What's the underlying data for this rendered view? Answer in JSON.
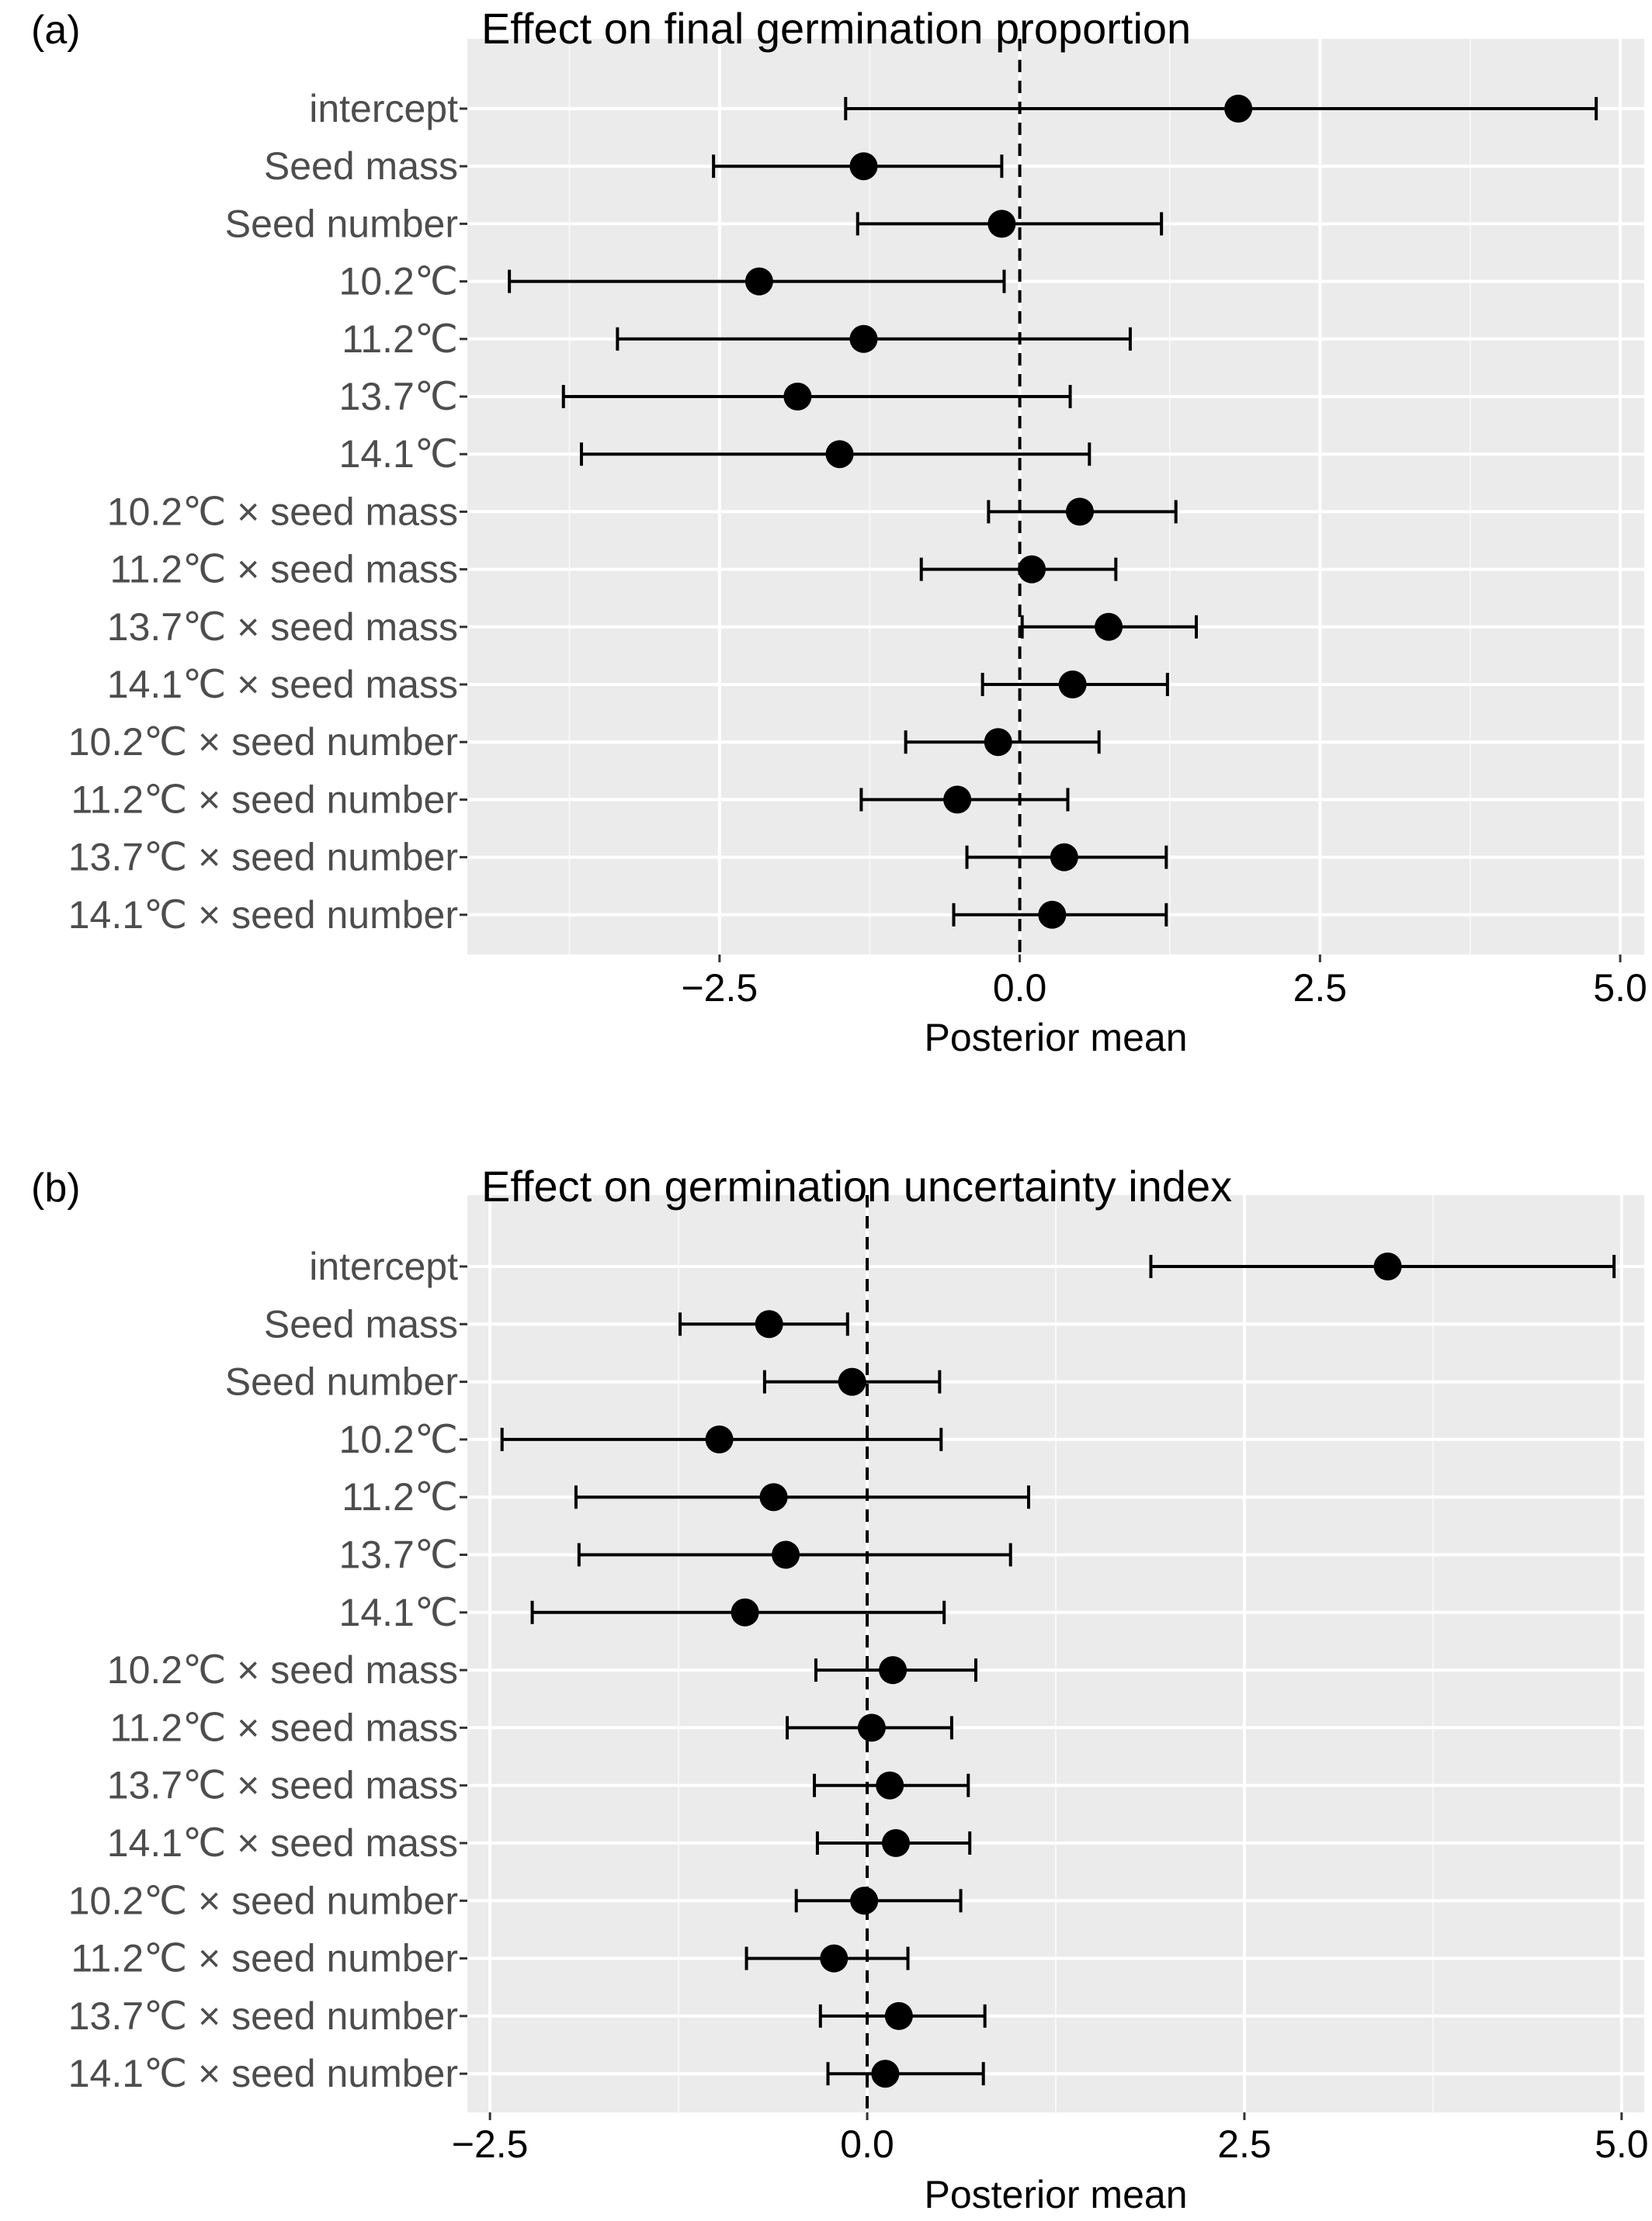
{
  "chart_data": [
    {
      "type": "dot-and-whisker",
      "panel_label": "(a)",
      "title": "Effect on final germination proportion",
      "xlabel": "Posterior mean",
      "ylabel": "",
      "xlim": [
        -4.6,
        5.2
      ],
      "xticks": [
        -2.5,
        0.0,
        2.5,
        5.0
      ],
      "xtick_labels": [
        "−2.5",
        "0.0",
        "2.5",
        "5.0"
      ],
      "reference_line": 0,
      "grid": true,
      "terms": [
        {
          "label": "intercept",
          "mean": 1.82,
          "low": -1.45,
          "high": 4.8
        },
        {
          "label": "Seed mass",
          "mean": -1.3,
          "low": -2.55,
          "high": -0.15
        },
        {
          "label": "Seed number",
          "mean": -0.15,
          "low": -1.35,
          "high": 1.18
        },
        {
          "label": "10.2℃",
          "mean": -2.17,
          "low": -4.25,
          "high": -0.13
        },
        {
          "label": "11.2℃",
          "mean": -1.3,
          "low": -3.35,
          "high": 0.92
        },
        {
          "label": "13.7℃",
          "mean": -1.85,
          "low": -3.8,
          "high": 0.42
        },
        {
          "label": "14.1℃",
          "mean": -1.5,
          "low": -3.65,
          "high": 0.58
        },
        {
          "label": "10.2℃ × seed mass",
          "mean": 0.5,
          "low": -0.26,
          "high": 1.3
        },
        {
          "label": "11.2℃ × seed mass",
          "mean": 0.1,
          "low": -0.82,
          "high": 0.8
        },
        {
          "label": "13.7℃ × seed mass",
          "mean": 0.74,
          "low": 0.02,
          "high": 1.47
        },
        {
          "label": "14.1℃ × seed mass",
          "mean": 0.44,
          "low": -0.31,
          "high": 1.23
        },
        {
          "label": "10.2℃ × seed number",
          "mean": -0.18,
          "low": -0.95,
          "high": 0.66
        },
        {
          "label": "11.2℃ × seed number",
          "mean": -0.52,
          "low": -1.32,
          "high": 0.4
        },
        {
          "label": "13.7℃ × seed number",
          "mean": 0.37,
          "low": -0.44,
          "high": 1.22
        },
        {
          "label": "14.1℃ × seed number",
          "mean": 0.27,
          "low": -0.55,
          "high": 1.22
        }
      ]
    },
    {
      "type": "dot-and-whisker",
      "panel_label": "(b)",
      "title": "Effect on germination uncertainty index",
      "xlabel": "Posterior mean",
      "ylabel": "",
      "xlim": [
        -2.65,
        5.15
      ],
      "xticks": [
        -2.5,
        0.0,
        2.5,
        5.0
      ],
      "xtick_labels": [
        "−2.5",
        "0.0",
        "2.5",
        "5.0"
      ],
      "reference_line": 0,
      "grid": true,
      "terms": [
        {
          "label": "intercept",
          "mean": 3.45,
          "low": 1.88,
          "high": 4.95
        },
        {
          "label": "Seed mass",
          "mean": -0.65,
          "low": -1.24,
          "high": -0.13
        },
        {
          "label": "Seed number",
          "mean": -0.1,
          "low": -0.68,
          "high": 0.48
        },
        {
          "label": "10.2℃",
          "mean": -0.98,
          "low": -2.42,
          "high": 0.49
        },
        {
          "label": "11.2℃",
          "mean": -0.62,
          "low": -1.93,
          "high": 1.07
        },
        {
          "label": "13.7℃",
          "mean": -0.54,
          "low": -1.91,
          "high": 0.95
        },
        {
          "label": "14.1℃",
          "mean": -0.81,
          "low": -2.22,
          "high": 0.51
        },
        {
          "label": "10.2℃ × seed mass",
          "mean": 0.17,
          "low": -0.34,
          "high": 0.72
        },
        {
          "label": "11.2℃ × seed mass",
          "mean": 0.03,
          "low": -0.53,
          "high": 0.56
        },
        {
          "label": "13.7℃ × seed mass",
          "mean": 0.15,
          "low": -0.35,
          "high": 0.67
        },
        {
          "label": "14.1℃ × seed mass",
          "mean": 0.19,
          "low": -0.33,
          "high": 0.68
        },
        {
          "label": "10.2℃ × seed number",
          "mean": -0.02,
          "low": -0.47,
          "high": 0.62
        },
        {
          "label": "11.2℃ × seed number",
          "mean": -0.22,
          "low": -0.8,
          "high": 0.27
        },
        {
          "label": "13.7℃ × seed number",
          "mean": 0.21,
          "low": -0.31,
          "high": 0.78
        },
        {
          "label": "14.1℃ × seed number",
          "mean": 0.12,
          "low": -0.26,
          "high": 0.77
        }
      ]
    }
  ]
}
